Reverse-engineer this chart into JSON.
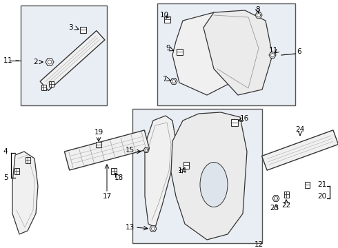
{
  "bg_color": "#ffffff",
  "box_fill": "#e8eef4",
  "part_fill": "#f5f5f5",
  "part_edge": "#333333",
  "box_edge": "#555555",
  "label_color": "#000000",
  "fig_w": 4.9,
  "fig_h": 3.6,
  "dpi": 100
}
